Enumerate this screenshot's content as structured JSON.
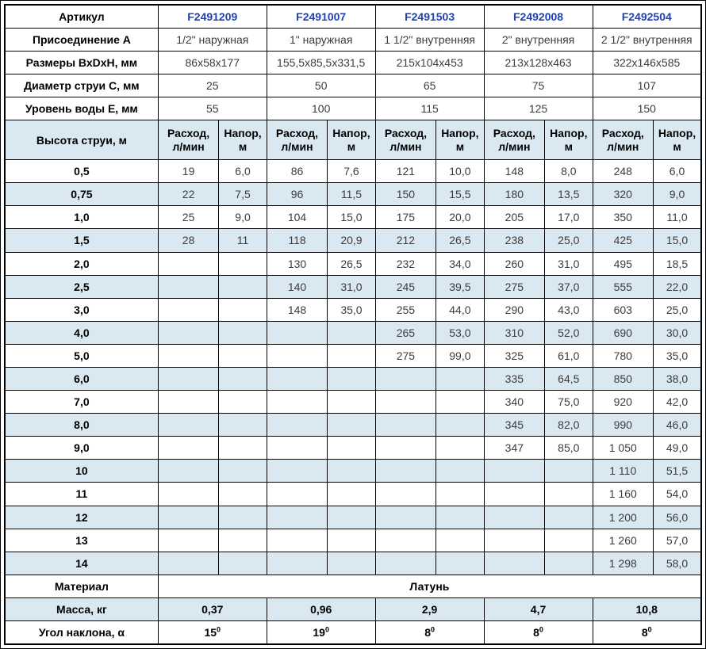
{
  "colors": {
    "stripe_blue": "#d9e8f1",
    "article_blue": "#1f41b5",
    "data_text": "#3c3c3c",
    "border": "#000000"
  },
  "labels": {
    "article": "Артикул",
    "connection": "Присоединение А",
    "dimensions": "Размеры ВхDхН, мм",
    "jet_diameter": "Диаметр струи С, мм",
    "water_level": "Уровень воды Е, мм",
    "jet_height": "Высота струи, м",
    "flow": "Расход, л/мин",
    "head": "Напор, м",
    "material": "Материал",
    "mass": "Масса, кг",
    "angle": "Угол наклона, α"
  },
  "material_value": "Латунь",
  "products": [
    {
      "article": "F2491209",
      "connection": "1/2\" наружная",
      "dimensions": "86x58x177",
      "jet_diameter": "25",
      "water_level": "55",
      "mass": "0,37",
      "angle": {
        "value": "15",
        "sup": "0"
      }
    },
    {
      "article": "F2491007",
      "connection": "1\" наружная",
      "dimensions": "155,5x85,5x331,5",
      "jet_diameter": "50",
      "water_level": "100",
      "mass": "0,96",
      "angle": {
        "value": "19",
        "sup": "0"
      }
    },
    {
      "article": "F2491503",
      "connection": "1 1/2\" внутренняя",
      "dimensions": "215x104x453",
      "jet_diameter": "65",
      "water_level": "115",
      "mass": "2,9",
      "angle": {
        "value": "8",
        "sup": "0"
      }
    },
    {
      "article": "F2492008",
      "connection": "2\" внутренняя",
      "dimensions": "213x128x463",
      "jet_diameter": "75",
      "water_level": "125",
      "mass": "4,7",
      "angle": {
        "value": "8",
        "sup": "0"
      }
    },
    {
      "article": "F2492504",
      "connection": "2 1/2\" внутренняя",
      "dimensions": "322x146x585",
      "jet_diameter": "107",
      "water_level": "150",
      "mass": "10,8",
      "angle": {
        "value": "8",
        "sup": "0"
      }
    }
  ],
  "jet_rows": [
    {
      "label": "0,5",
      "values": [
        "19",
        "6,0",
        "86",
        "7,6",
        "121",
        "10,0",
        "148",
        "8,0",
        "248",
        "6,0"
      ]
    },
    {
      "label": "0,75",
      "values": [
        "22",
        "7,5",
        "96",
        "11,5",
        "150",
        "15,5",
        "180",
        "13,5",
        "320",
        "9,0"
      ]
    },
    {
      "label": "1,0",
      "values": [
        "25",
        "9,0",
        "104",
        "15,0",
        "175",
        "20,0",
        "205",
        "17,0",
        "350",
        "11,0"
      ]
    },
    {
      "label": "1,5",
      "values": [
        "28",
        "11",
        "118",
        "20,9",
        "212",
        "26,5",
        "238",
        "25,0",
        "425",
        "15,0"
      ]
    },
    {
      "label": "2,0",
      "values": [
        "",
        "",
        "130",
        "26,5",
        "232",
        "34,0",
        "260",
        "31,0",
        "495",
        "18,5"
      ]
    },
    {
      "label": "2,5",
      "values": [
        "",
        "",
        "140",
        "31,0",
        "245",
        "39,5",
        "275",
        "37,0",
        "555",
        "22,0"
      ]
    },
    {
      "label": "3,0",
      "values": [
        "",
        "",
        "148",
        "35,0",
        "255",
        "44,0",
        "290",
        "43,0",
        "603",
        "25,0"
      ]
    },
    {
      "label": "4,0",
      "values": [
        "",
        "",
        "",
        "",
        "265",
        "53,0",
        "310",
        "52,0",
        "690",
        "30,0"
      ]
    },
    {
      "label": "5,0",
      "values": [
        "",
        "",
        "",
        "",
        "275",
        "99,0",
        "325",
        "61,0",
        "780",
        "35,0"
      ]
    },
    {
      "label": "6,0",
      "values": [
        "",
        "",
        "",
        "",
        "",
        "",
        "335",
        "64,5",
        "850",
        "38,0"
      ]
    },
    {
      "label": "7,0",
      "values": [
        "",
        "",
        "",
        "",
        "",
        "",
        "340",
        "75,0",
        "920",
        "42,0"
      ]
    },
    {
      "label": "8,0",
      "values": [
        "",
        "",
        "",
        "",
        "",
        "",
        "345",
        "82,0",
        "990",
        "46,0"
      ]
    },
    {
      "label": "9,0",
      "values": [
        "",
        "",
        "",
        "",
        "",
        "",
        "347",
        "85,0",
        "1 050",
        "49,0"
      ]
    },
    {
      "label": "10",
      "values": [
        "",
        "",
        "",
        "",
        "",
        "",
        "",
        "",
        "1 110",
        "51,5"
      ]
    },
    {
      "label": "11",
      "values": [
        "",
        "",
        "",
        "",
        "",
        "",
        "",
        "",
        "1 160",
        "54,0"
      ]
    },
    {
      "label": "12",
      "values": [
        "",
        "",
        "",
        "",
        "",
        "",
        "",
        "",
        "1 200",
        "56,0"
      ]
    },
    {
      "label": "13",
      "values": [
        "",
        "",
        "",
        "",
        "",
        "",
        "",
        "",
        "1 260",
        "57,0"
      ]
    },
    {
      "label": "14",
      "values": [
        "",
        "",
        "",
        "",
        "",
        "",
        "",
        "",
        "1 298",
        "58,0"
      ]
    }
  ]
}
